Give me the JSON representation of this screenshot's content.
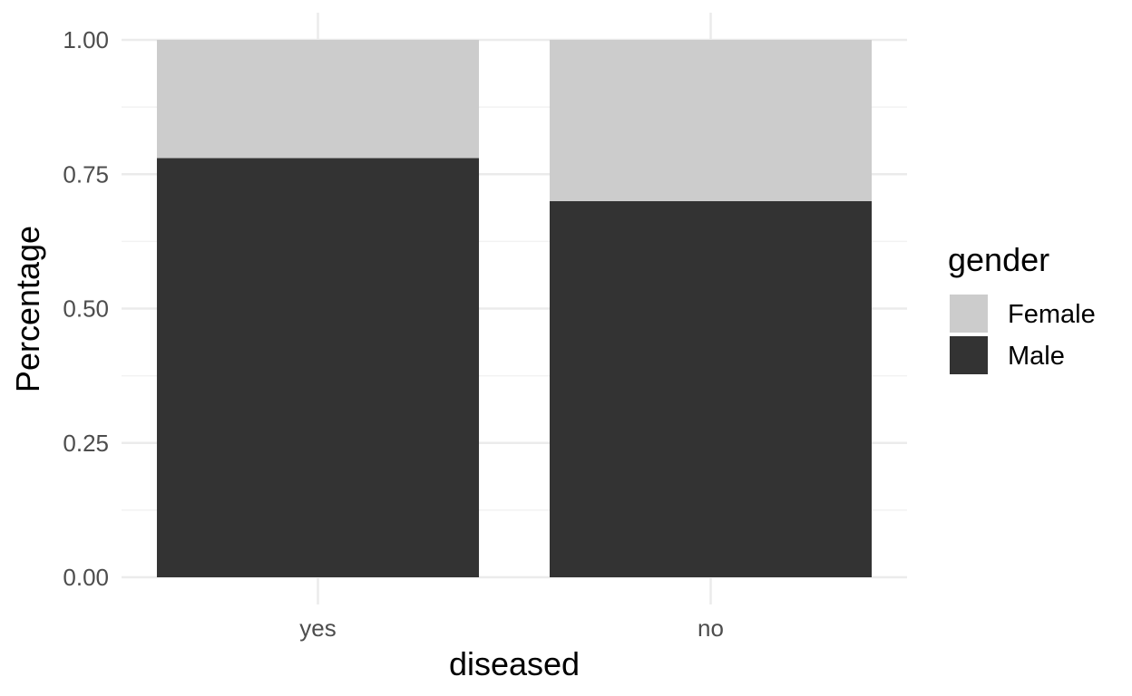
{
  "chart_data": {
    "type": "bar",
    "stacked": true,
    "categories": [
      "yes",
      "no"
    ],
    "series": [
      {
        "name": "Male",
        "values": [
          0.78,
          0.7
        ],
        "color": "#333333"
      },
      {
        "name": "Female",
        "values": [
          0.22,
          0.3
        ],
        "color": "#cccccc"
      }
    ],
    "xlabel": "diseased",
    "ylabel": "Percentage",
    "ylim": [
      0,
      1
    ],
    "y_ticks": [
      "0.00",
      "0.25",
      "0.50",
      "0.75",
      "1.00"
    ],
    "y_tick_values": [
      0,
      0.25,
      0.5,
      0.75,
      1.0
    ],
    "grid": true,
    "legend": {
      "title": "gender",
      "placement": "right",
      "entries": [
        {
          "label": "Female",
          "color": "#cccccc"
        },
        {
          "label": "Male",
          "color": "#333333"
        }
      ]
    }
  }
}
